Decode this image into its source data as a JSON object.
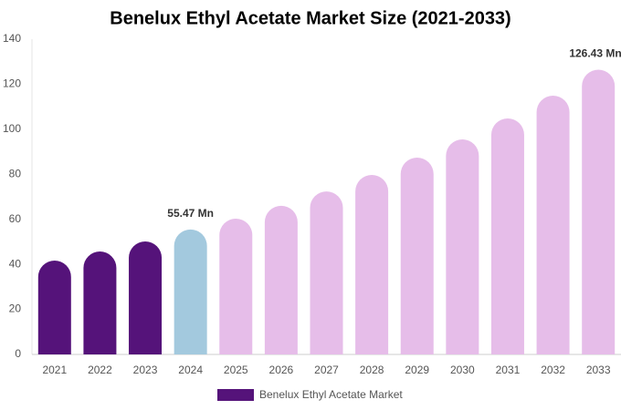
{
  "chart_data": {
    "type": "bar",
    "title": "Benelux Ethyl Acetate Market Size (2021-2033)",
    "categories": [
      "2021",
      "2022",
      "2023",
      "2024",
      "2025",
      "2026",
      "2027",
      "2028",
      "2029",
      "2030",
      "2031",
      "2032",
      "2033"
    ],
    "series": [
      {
        "name": "Benelux Ethyl Acetate Market",
        "color": "#55137a",
        "values": [
          41.7,
          45.7,
          50.2,
          55.47,
          60.3,
          66.0,
          72.4,
          79.7,
          87.4,
          95.5,
          104.8,
          114.9,
          126.43
        ],
        "value_labels": [
          null,
          null,
          null,
          "55.47 Mn",
          null,
          null,
          null,
          null,
          null,
          null,
          null,
          null,
          "126.43 Mn"
        ],
        "colors": [
          "#55137a",
          "#55137a",
          "#55137a",
          "#a3c9de",
          "#e6bde9",
          "#e6bde9",
          "#e6bde9",
          "#e6bde9",
          "#e6bde9",
          "#e6bde9",
          "#e6bde9",
          "#e6bde9",
          "#e6bde9"
        ]
      }
    ],
    "ylim": [
      0,
      140
    ],
    "yticks": [
      0,
      20,
      40,
      60,
      80,
      100,
      120,
      140
    ],
    "grid": false,
    "legend": "bottom"
  }
}
